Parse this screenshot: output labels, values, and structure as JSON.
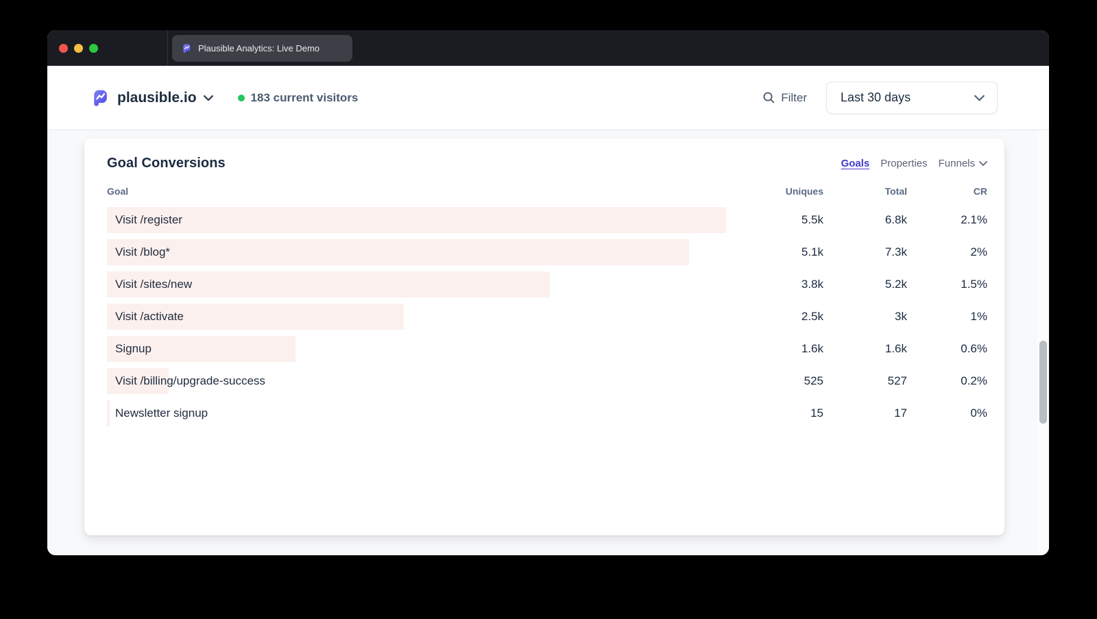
{
  "browser": {
    "tab_title": "Plausible Analytics: Live Demo"
  },
  "header": {
    "site_name": "plausible.io",
    "current_visitors": "183 current visitors",
    "filter_label": "Filter",
    "date_range_label": "Last 30 days"
  },
  "goal_conversions": {
    "title": "Goal Conversions",
    "tabs": {
      "goals": "Goals",
      "properties": "Properties",
      "funnels": "Funnels"
    },
    "columns": {
      "goal": "Goal",
      "uniques": "Uniques",
      "total": "Total",
      "cr": "CR"
    },
    "rows": [
      {
        "goal": "Visit /register",
        "uniques": "5.5k",
        "total": "6.8k",
        "cr": "2.1%",
        "bar_pct": 100
      },
      {
        "goal": "Visit /blog*",
        "uniques": "5.1k",
        "total": "7.3k",
        "cr": "2%",
        "bar_pct": 94
      },
      {
        "goal": "Visit /sites/new",
        "uniques": "3.8k",
        "total": "5.2k",
        "cr": "1.5%",
        "bar_pct": 71.5
      },
      {
        "goal": "Visit /activate",
        "uniques": "2.5k",
        "total": "3k",
        "cr": "1%",
        "bar_pct": 48
      },
      {
        "goal": "Signup",
        "uniques": "1.6k",
        "total": "1.6k",
        "cr": "0.6%",
        "bar_pct": 30.5
      },
      {
        "goal": "Visit /billing/upgrade-success",
        "uniques": "525",
        "total": "527",
        "cr": "0.2%",
        "bar_pct": 10
      },
      {
        "goal": "Newsletter signup",
        "uniques": "15",
        "total": "17",
        "cr": "0%",
        "bar_pct": 0.45
      }
    ]
  },
  "colors": {
    "bar_fill": "#fcf0ee",
    "accent": "#4338ca",
    "live_dot": "#22c55e",
    "traffic_lights": [
      "#f2564e",
      "#f5bf43",
      "#30c740"
    ]
  }
}
